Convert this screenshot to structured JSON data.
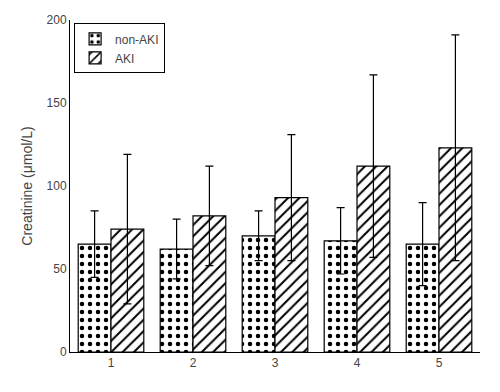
{
  "chart_data": {
    "type": "bar",
    "categories": [
      1,
      2,
      3,
      4,
      5
    ],
    "series": [
      {
        "name": "non-AKI",
        "color": "white",
        "values": [
          65,
          62,
          70,
          67,
          65
        ],
        "errors": [
          20,
          18,
          15,
          20,
          25
        ]
      },
      {
        "name": "AKI",
        "color": "white",
        "values": [
          74,
          82,
          93,
          112,
          123
        ],
        "errors": [
          45,
          30,
          38,
          55,
          68
        ]
      }
    ],
    "ylabel": "Creatinine (μmol/L)",
    "ylim": [
      0,
      200
    ],
    "yticks": [
      0,
      50,
      100,
      150,
      200
    ],
    "grid": false,
    "legend": "upper left"
  }
}
